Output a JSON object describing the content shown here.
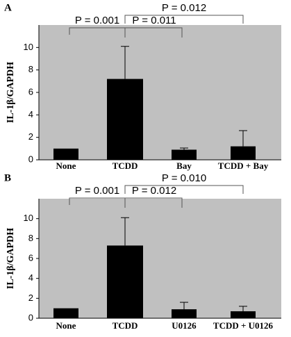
{
  "chart_data": [
    {
      "type": "bar",
      "panel": "A",
      "y_label": "IL-1β/GAPDH",
      "categories": [
        "None",
        "TCDD",
        "Bay",
        "TCDD + Bay"
      ],
      "series": [
        {
          "color": "#000000",
          "values": [
            1.0,
            7.2,
            0.9,
            1.2
          ],
          "errors": [
            0,
            2.9,
            0.15,
            1.4
          ]
        }
      ],
      "ylim": [
        0,
        12
      ],
      "yticks": [
        0,
        2,
        4,
        6,
        8,
        10
      ],
      "annotations": [
        "P = 0.012",
        "P = 0.001",
        "P = 0.011"
      ]
    },
    {
      "type": "bar",
      "panel": "B",
      "y_label": "IL-1β/GAPDH",
      "categories": [
        "None",
        "TCDD",
        "U0126",
        "TCDD + U0126"
      ],
      "series": [
        {
          "color": "#000000",
          "values": [
            1.0,
            7.3,
            0.9,
            0.7
          ],
          "errors": [
            0,
            2.8,
            0.7,
            0.5
          ]
        }
      ],
      "ylim": [
        0,
        12
      ],
      "yticks": [
        0,
        2,
        4,
        6,
        8,
        10
      ],
      "annotations": [
        "P = 0.010",
        "P = 0.001",
        "P = 0.012"
      ]
    }
  ]
}
